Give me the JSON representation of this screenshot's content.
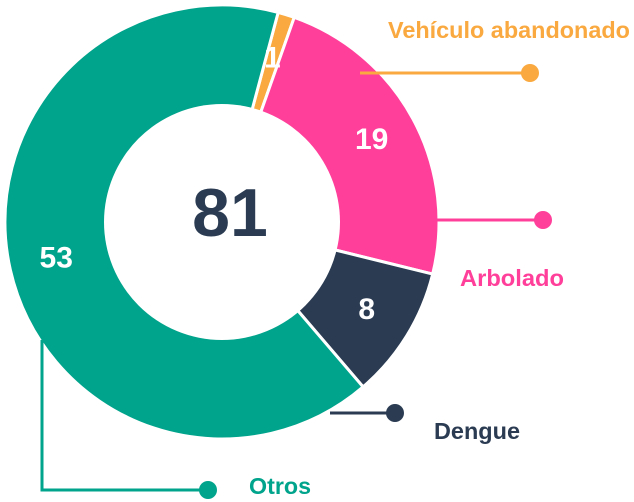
{
  "chart_data": {
    "type": "donut",
    "total": 81,
    "categories": [
      "Vehículo abandonado",
      "Arbolado",
      "Dengue",
      "Otros"
    ],
    "values": [
      1,
      19,
      8,
      53
    ],
    "colors": [
      "#f9a93f",
      "#ff3f9a",
      "#2a3b52",
      "#00a38b"
    ]
  }
}
